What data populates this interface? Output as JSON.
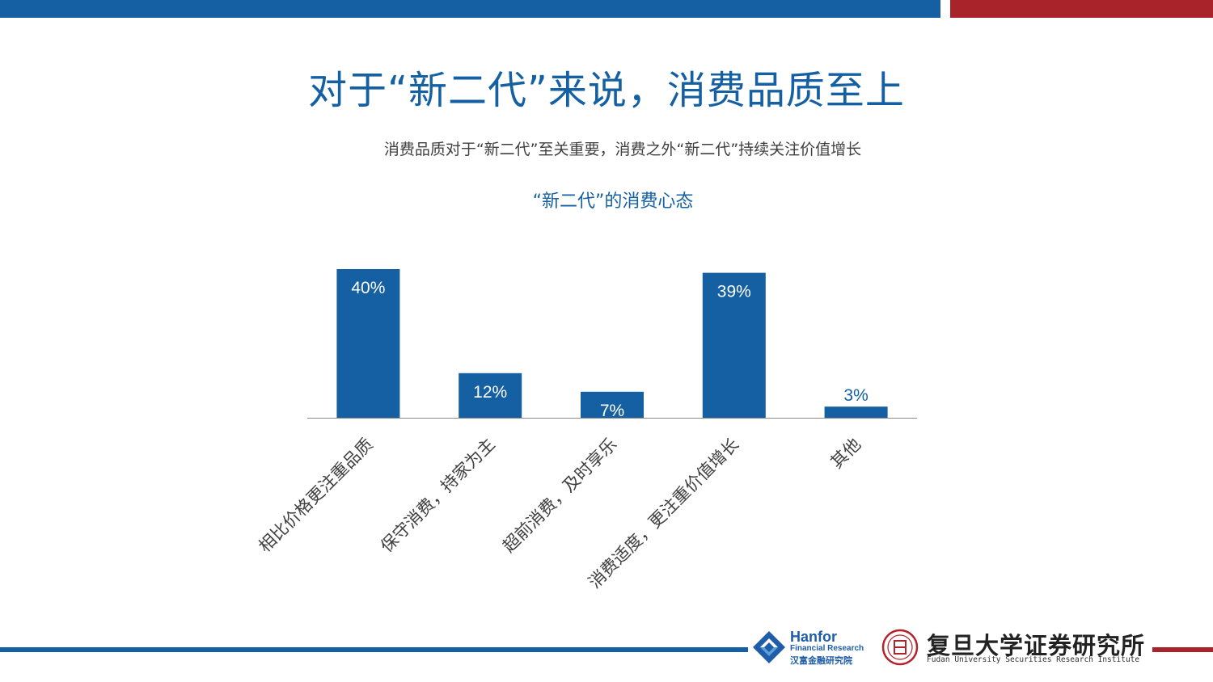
{
  "title": "对于“新二代”来说，消费品质至上",
  "subtitle": "消费品质对于“新二代”至关重要，消费之外“新二代”持续关注价值增长",
  "colors": {
    "primary_blue": "#1460a3",
    "accent_red": "#a8232a",
    "text_gray": "#404040"
  },
  "chart_data": {
    "type": "bar",
    "title": "“新二代”的消费心态",
    "categories": [
      "相比价格更注重品质",
      "保守消费，持家为主",
      "超前消费，及时享乐",
      "消费适度，更注重价值增长",
      "其他"
    ],
    "values": [
      40,
      12,
      7,
      39,
      3
    ],
    "value_labels": [
      "40%",
      "12%",
      "7%",
      "39%",
      "3%"
    ],
    "unit": "%",
    "ylim": [
      0,
      40
    ],
    "grid": false,
    "legend": "none"
  },
  "logos": {
    "hanfor": {
      "name": "Hanfor",
      "sub": "Financial Research",
      "cn": "汉富金融研究院"
    },
    "fudan": {
      "name": "复旦大学证券研究所",
      "en": "Fudan University Securities Research Institute"
    }
  }
}
